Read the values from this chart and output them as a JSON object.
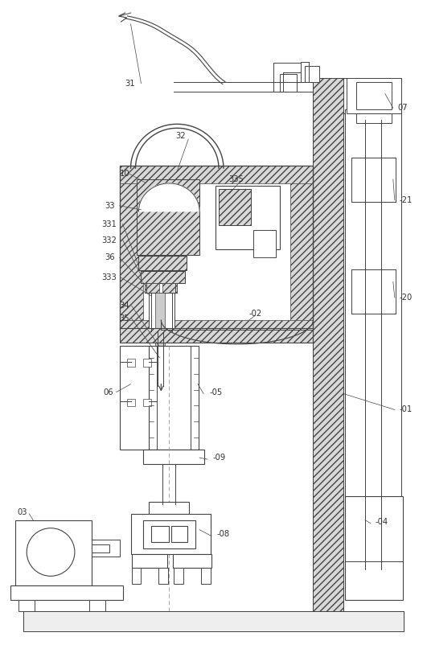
{
  "fig_width": 5.31,
  "fig_height": 8.07,
  "dpi": 100,
  "bg_color": "#ffffff",
  "lc": "#444444",
  "hatch_fc": "#d8d8d8",
  "white": "#ffffff",
  "gray": "#bbbbbb"
}
